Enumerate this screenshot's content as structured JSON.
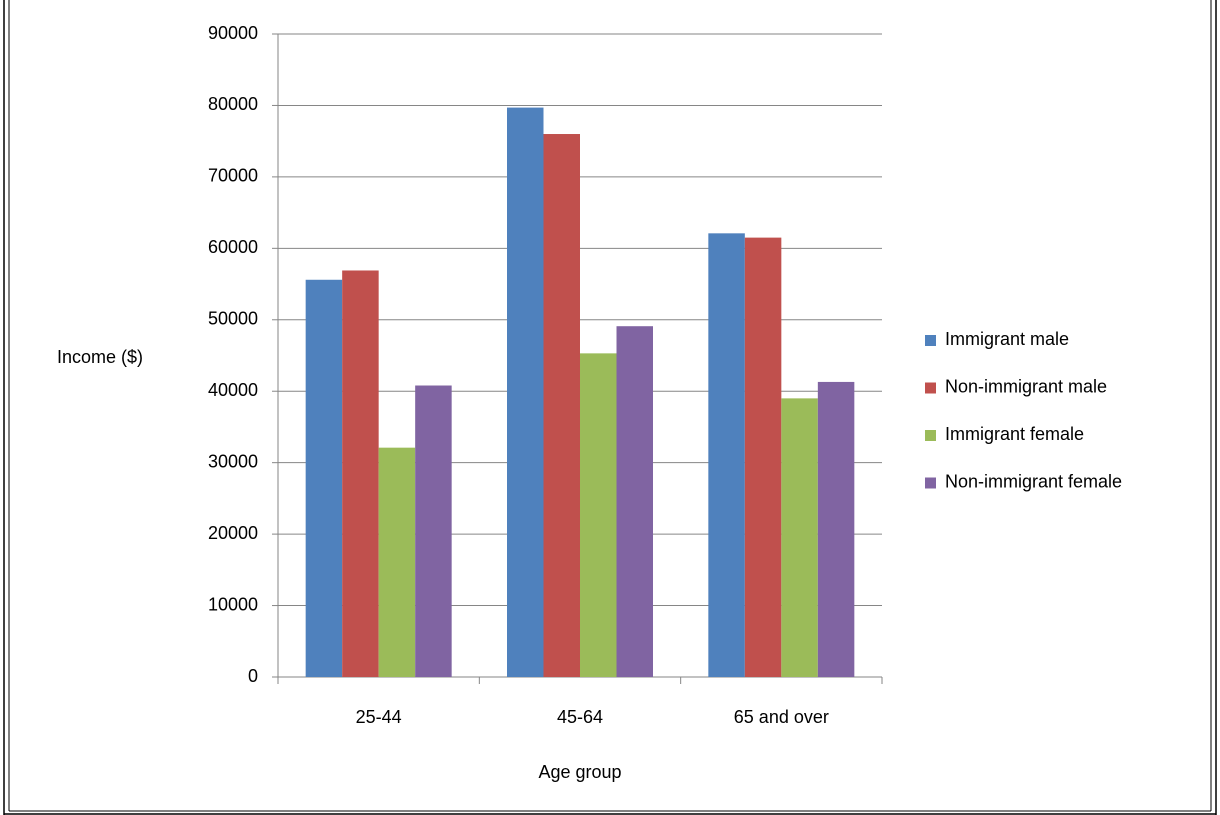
{
  "chart_data": {
    "type": "bar",
    "y_label": "Income ($)",
    "x_label": "Age group",
    "categories": [
      "25-44",
      "45-64",
      "65 and over"
    ],
    "series": [
      {
        "name": "Immigrant male",
        "color": "#4f81bd",
        "values": [
          55600,
          79700,
          62100
        ]
      },
      {
        "name": "Non-immigrant male",
        "color": "#c0504d",
        "values": [
          56900,
          76000,
          61500
        ]
      },
      {
        "name": "Immigrant female",
        "color": "#9bbb59",
        "values": [
          32100,
          45300,
          39000
        ]
      },
      {
        "name": "Non-immigrant female",
        "color": "#8064a2",
        "values": [
          40800,
          49100,
          41300
        ]
      }
    ],
    "ylim": [
      0,
      90000
    ],
    "yticks": [
      0,
      10000,
      20000,
      30000,
      40000,
      50000,
      60000,
      70000,
      80000,
      90000
    ],
    "grid": true,
    "legend": "right"
  }
}
